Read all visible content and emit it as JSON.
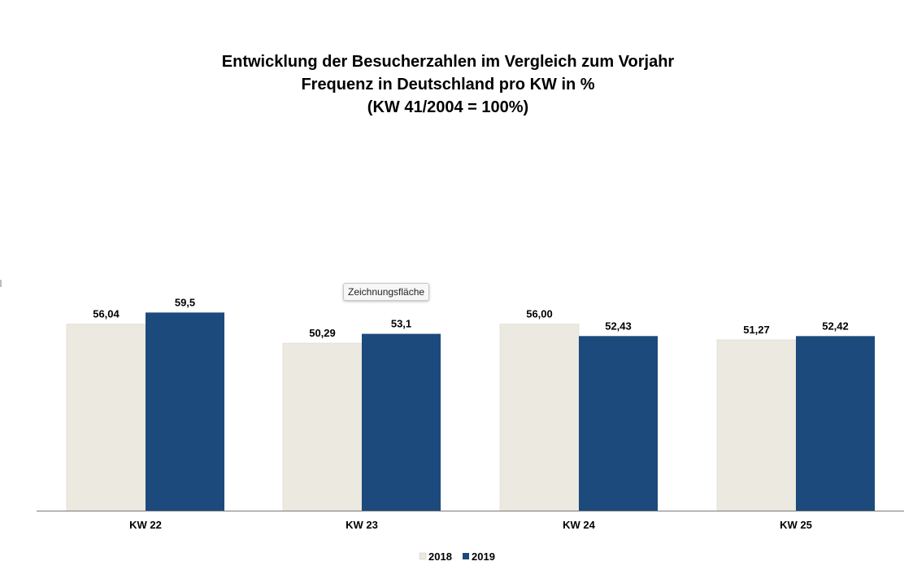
{
  "chart_data": {
    "type": "bar",
    "title_lines": [
      "Entwicklung der Besucherzahlen im Vergleich zum Vorjahr",
      "Frequenz in Deutschland pro KW in %",
      "(KW 41/2004 = 100%)"
    ],
    "categories": [
      "KW 22",
      "KW 23",
      "KW 24",
      "KW 25"
    ],
    "series": [
      {
        "name": "2018",
        "color": "#ece9e1",
        "values": [
          56.04,
          50.29,
          56.0,
          51.27
        ],
        "labels": [
          "56,04",
          "50,29",
          "56,00",
          "51,27"
        ]
      },
      {
        "name": "2019",
        "color": "#1c4a7c",
        "values": [
          59.5,
          53.1,
          52.43,
          52.42
        ],
        "labels": [
          "59,5",
          "53,1",
          "52,43",
          "52,42"
        ]
      }
    ],
    "xlabel": "",
    "ylabel": "",
    "ylim": [
      0,
      90
    ],
    "grid": false,
    "legend_position": "bottom-center"
  },
  "tooltip": {
    "label": "Zeichnungsfläche"
  }
}
